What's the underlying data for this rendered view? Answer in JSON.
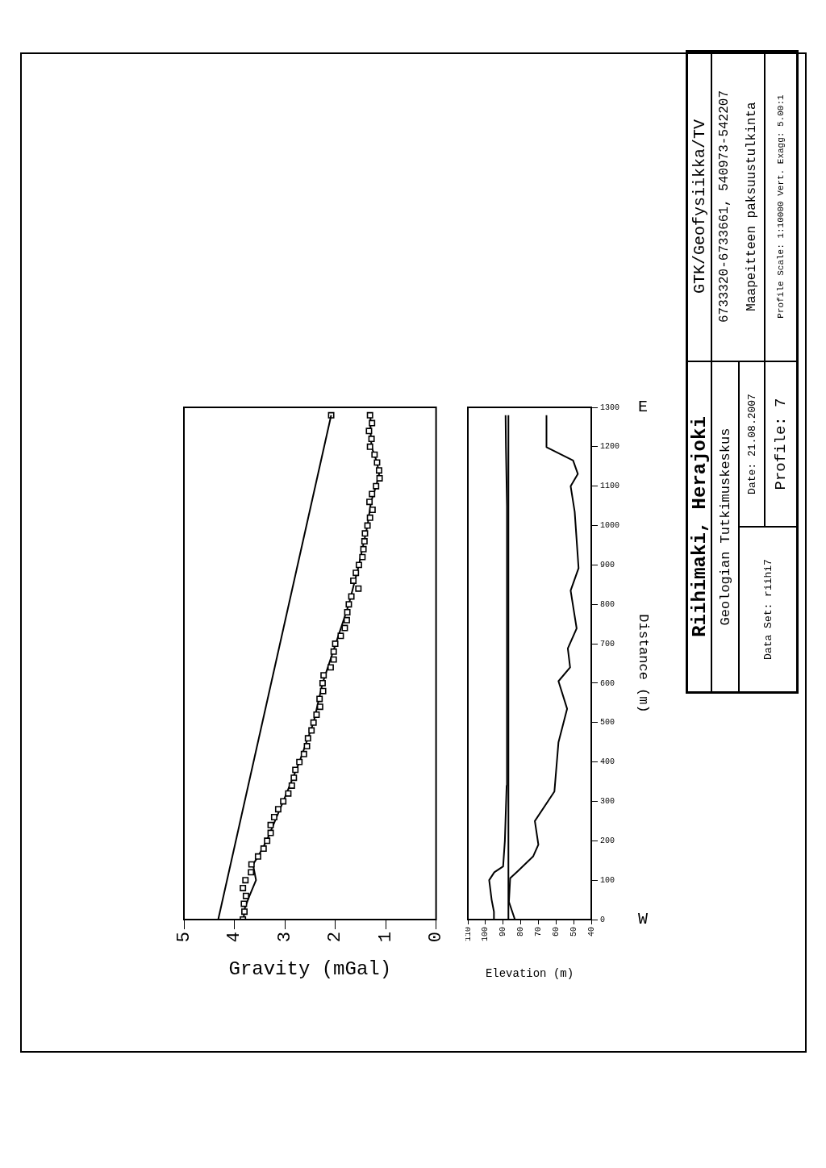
{
  "chart_data": [
    {
      "type": "line",
      "xlabel": "Gravity (mGal)",
      "xlim": [
        5,
        0
      ],
      "xticks": [
        5,
        4,
        3,
        2,
        1,
        0
      ],
      "ylim": [
        0,
        1300
      ],
      "yticks": [
        0,
        100,
        200,
        300,
        400,
        500,
        600,
        700,
        800,
        900,
        1000,
        1100,
        1200,
        1300
      ],
      "tick_labels": "x",
      "grid": false,
      "legend": false,
      "series": [
        {
          "type": "scatter",
          "marker": "square",
          "color": "#000000",
          "x": [
            3.83,
            3.8,
            3.81,
            3.77,
            3.83,
            3.78,
            3.67,
            3.66,
            3.53,
            3.42,
            3.35,
            3.28,
            3.28,
            3.21,
            3.13,
            3.03,
            2.93,
            2.86,
            2.82,
            2.79,
            2.71,
            2.62,
            2.56,
            2.54,
            2.47,
            2.43,
            2.37,
            2.3,
            2.31,
            2.24,
            2.25,
            2.23,
            2.09,
            2.03,
            2.03,
            2.0,
            1.89,
            1.81,
            1.77,
            1.76,
            1.73,
            1.68,
            1.54,
            1.64,
            1.59,
            1.53,
            1.46,
            1.44,
            1.42,
            1.41,
            1.36,
            1.31,
            1.26,
            1.32,
            1.27,
            1.19,
            1.12,
            1.13,
            1.17,
            1.22,
            1.31,
            1.28,
            1.33,
            1.27,
            1.31
          ],
          "values": [
            0,
            20,
            40,
            60,
            80,
            100,
            120,
            140,
            160,
            180,
            200,
            220,
            240,
            260,
            280,
            300,
            320,
            340,
            360,
            380,
            400,
            420,
            440,
            460,
            480,
            500,
            520,
            540,
            560,
            580,
            600,
            620,
            640,
            660,
            680,
            700,
            720,
            740,
            760,
            780,
            800,
            820,
            840,
            860,
            880,
            900,
            920,
            940,
            960,
            980,
            1000,
            1020,
            1040,
            1060,
            1080,
            1100,
            1120,
            1140,
            1160,
            1180,
            1200,
            1220,
            1240,
            1260,
            1280
          ]
        },
        {
          "type": "line",
          "marker": "none",
          "color": "#000000",
          "x": [
            3.82,
            3.79,
            3.7,
            3.57,
            3.63,
            3.53,
            3.36,
            3.03,
            2.71,
            2.43,
            2.25,
            1.99,
            1.73,
            1.53,
            1.36,
            1.29,
            1.19,
            1.13,
            1.17,
            1.28,
            1.3,
            1.3
          ],
          "values": [
            0,
            30,
            60,
            100,
            140,
            160,
            200,
            300,
            400,
            500,
            600,
            700,
            800,
            900,
            1000,
            1060,
            1100,
            1130,
            1160,
            1200,
            1240,
            1280
          ]
        },
        {
          "type": "line",
          "marker": "none",
          "color": "#000000",
          "x": [
            4.32,
            2.08
          ],
          "values": [
            0,
            1280
          ]
        },
        {
          "type": "scatter",
          "marker": "square",
          "color": "#000000",
          "x": [
            2.08
          ],
          "values": [
            1280
          ]
        }
      ]
    },
    {
      "type": "line",
      "xlabel": "Elevation (m)",
      "ylabel": "Distance (m)",
      "xlim": [
        110,
        40
      ],
      "xticks": [
        110,
        100,
        90,
        80,
        70,
        60,
        50,
        40
      ],
      "ylim": [
        0,
        1300
      ],
      "yticks": [
        0,
        100,
        200,
        300,
        400,
        500,
        600,
        700,
        800,
        900,
        1000,
        1100,
        1200,
        1300
      ],
      "grid": false,
      "legend": false,
      "marker": "none",
      "series": [
        {
          "color": "#000000",
          "x": [
            95,
            95.2,
            96.5,
            97.9,
            95,
            90,
            89,
            88,
            87.8,
            88.4,
            88.6
          ],
          "values": [
            0,
            20,
            50,
            100,
            120,
            135,
            200,
            340,
            1050,
            1200,
            1280
          ]
        },
        {
          "color": "#000000",
          "x": [
            87,
            87
          ],
          "values": [
            0,
            1280
          ]
        },
        {
          "color": "#000000",
          "x": [
            83.3,
            86.7,
            86,
            81.2,
            73,
            70,
            72,
            60.9,
            58.6,
            53.7,
            58.6,
            52,
            53.3,
            48.3,
            51.7,
            47.2,
            49.4,
            51.7,
            47.6,
            50.3,
            65.4,
            65.4
          ],
          "values": [
            0,
            45,
            105,
            125,
            160,
            190,
            250,
            325,
            450,
            535,
            605,
            640,
            688,
            739,
            835,
            892,
            1035,
            1100,
            1131,
            1165,
            1199,
            1280
          ]
        }
      ],
      "annotations": [
        "W",
        "E"
      ]
    },
    {
      "type": "other",
      "title": "Riihimaki, Herajoki",
      "annotations": [
        "Geologian Tutkimuskeskus",
        "Data Set: riihi7",
        "Date: 21.08.2007",
        "Profile: 7",
        "GTK/Geofysiikka/TV",
        "6733320-6733661, 540973-542207",
        "Maapeitteen paksuustulkinta",
        "Profile Scale: 1:10000 Vert. Exagg: 5.00:1"
      ]
    }
  ]
}
